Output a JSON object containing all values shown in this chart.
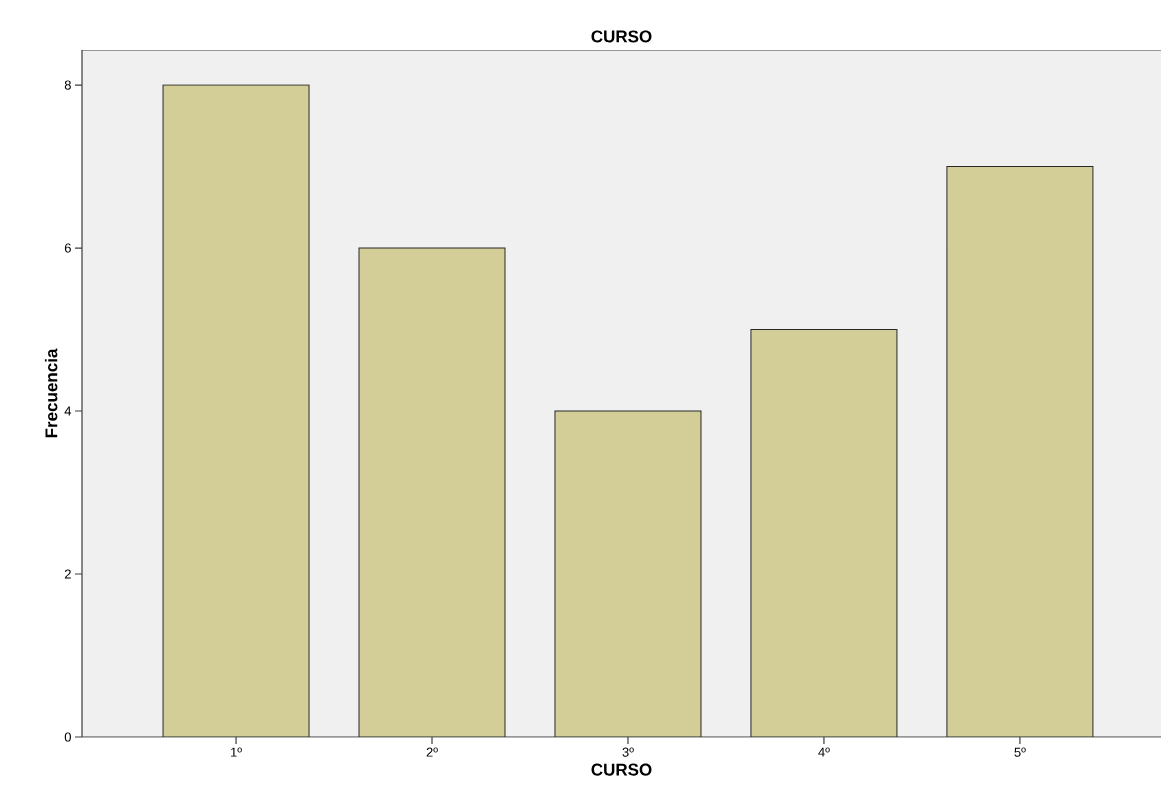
{
  "chart_data": {
    "type": "bar",
    "title": "CURSO",
    "xlabel": "CURSO",
    "ylabel": "Frecuencia",
    "categories": [
      "1º",
      "2º",
      "3º",
      "4º",
      "5º"
    ],
    "values": [
      8,
      6,
      4,
      5,
      7
    ],
    "color": "#d3ce97",
    "ylim": [
      0,
      8.43
    ],
    "yticks": [
      0,
      2,
      4,
      6,
      8
    ],
    "grid": false
  }
}
